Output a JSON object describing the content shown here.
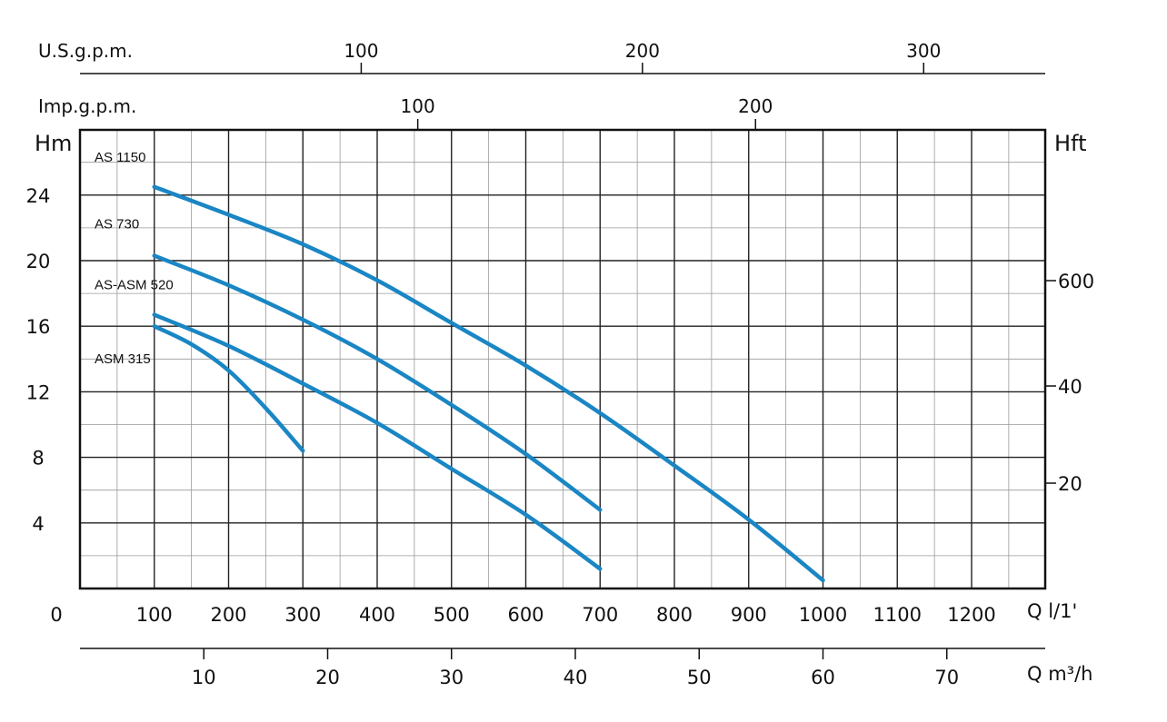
{
  "chart_data": {
    "type": "line",
    "title": "",
    "ylabel": "Hm",
    "ylabel_right": "Hft",
    "xlabel": "Q l/1'",
    "xlabel_m3h": "Q m³/h",
    "top_label_usgpm": "U.S.g.p.m.",
    "top_label_impgpm": "Imp.g.p.m.",
    "xlim": [
      0,
      1300
    ],
    "ylim": [
      0,
      28
    ],
    "grid": true,
    "x_ticks": [
      "0",
      "100",
      "200",
      "300",
      "400",
      "500",
      "600",
      "700",
      "800",
      "900",
      "1000",
      "1100",
      "1200"
    ],
    "y_ticks": [
      "4",
      "8",
      "12",
      "16",
      "20",
      "24"
    ],
    "m3h_ticks": [
      "10",
      "20",
      "30",
      "40",
      "50",
      "60",
      "70"
    ],
    "usgpm_ticks": [
      "100",
      "200",
      "300"
    ],
    "impgpm_ticks": [
      "100",
      "200"
    ],
    "hft_ticks": [
      "20",
      "40",
      "600"
    ],
    "line_color": "#1a86c4",
    "series": [
      {
        "name": "AS 1150",
        "points": [
          [
            100,
            24.5
          ],
          [
            200,
            22.8
          ],
          [
            300,
            21.0
          ],
          [
            400,
            18.8
          ],
          [
            500,
            16.2
          ],
          [
            600,
            13.6
          ],
          [
            700,
            10.7
          ],
          [
            800,
            7.5
          ],
          [
            900,
            4.2
          ],
          [
            1000,
            0.5
          ]
        ]
      },
      {
        "name": "AS 730",
        "points": [
          [
            100,
            20.3
          ],
          [
            200,
            18.5
          ],
          [
            300,
            16.4
          ],
          [
            400,
            14.0
          ],
          [
            500,
            11.2
          ],
          [
            600,
            8.2
          ],
          [
            700,
            4.8
          ]
        ]
      },
      {
        "name": "AS-ASM 520",
        "points": [
          [
            100,
            16.7
          ],
          [
            200,
            14.8
          ],
          [
            300,
            12.5
          ],
          [
            400,
            10.1
          ],
          [
            500,
            7.3
          ],
          [
            600,
            4.5
          ],
          [
            700,
            1.2
          ]
        ]
      },
      {
        "name": "ASM 315",
        "points": [
          [
            100,
            16.0
          ],
          [
            150,
            14.9
          ],
          [
            200,
            13.3
          ],
          [
            250,
            11.0
          ],
          [
            300,
            8.4
          ]
        ]
      }
    ]
  }
}
